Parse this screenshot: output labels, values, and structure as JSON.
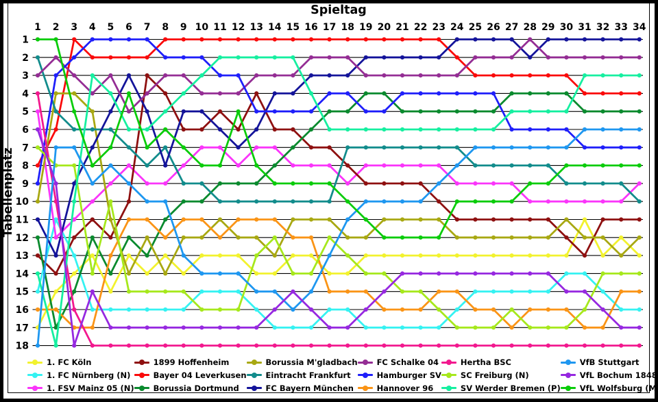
{
  "chart_data": {
    "type": "line",
    "title": "",
    "xlabel": "Spieltag",
    "ylabel": "Tabellenplatz",
    "x": [
      1,
      2,
      3,
      4,
      5,
      6,
      7,
      8,
      9,
      10,
      11,
      12,
      13,
      14,
      15,
      16,
      17,
      18,
      19,
      20,
      21,
      22,
      23,
      24,
      25,
      26,
      27,
      28,
      29,
      30,
      31,
      32,
      33,
      34
    ],
    "xlim": [
      1,
      34
    ],
    "ylim": [
      1,
      18
    ],
    "y_inverted": true,
    "grid": "horizontal",
    "legend_position": "bottom",
    "axis_color": "#000000",
    "series": [
      {
        "name": "1. FC Köln",
        "color": "#F2F22E",
        "values": [
          17,
          15,
          14,
          13,
          15,
          13,
          14,
          13,
          14,
          13,
          13,
          13,
          14,
          14,
          13,
          13,
          14,
          14,
          13,
          13,
          13,
          13,
          13,
          13,
          13,
          13,
          13,
          13,
          13,
          13,
          11,
          13,
          12,
          13
        ]
      },
      {
        "name": "1. FC Nürnberg (N)",
        "color": "#35F2F2",
        "values": [
          15,
          11,
          13,
          16,
          16,
          16,
          16,
          16,
          16,
          15,
          15,
          15,
          16,
          17,
          17,
          17,
          16,
          16,
          17,
          17,
          17,
          17,
          17,
          16,
          15,
          15,
          15,
          15,
          15,
          14,
          14,
          15,
          16,
          16
        ]
      },
      {
        "name": "1. FSV Mainz 05 (N)",
        "color": "#FA35FA",
        "values": [
          5,
          12,
          11,
          10,
          9,
          8,
          9,
          9,
          8,
          7,
          7,
          8,
          7,
          7,
          8,
          8,
          8,
          9,
          8,
          8,
          8,
          8,
          8,
          9,
          9,
          9,
          9,
          10,
          10,
          10,
          10,
          10,
          10,
          9
        ]
      },
      {
        "name": "1899 Hoffenheim",
        "color": "#8E1010",
        "values": [
          13,
          14,
          12,
          11,
          12,
          10,
          3,
          4,
          6,
          6,
          5,
          6,
          4,
          6,
          6,
          7,
          7,
          8,
          9,
          9,
          9,
          9,
          10,
          11,
          11,
          11,
          11,
          11,
          11,
          12,
          13,
          11,
          11,
          11
        ]
      },
      {
        "name": "Bayer 04 Leverkusen",
        "color": "#FA0A0A",
        "values": [
          8,
          6,
          1,
          2,
          2,
          2,
          2,
          1,
          1,
          1,
          1,
          1,
          1,
          1,
          1,
          1,
          1,
          1,
          1,
          1,
          1,
          1,
          1,
          2,
          3,
          3,
          3,
          3,
          3,
          3,
          4,
          4,
          4,
          4
        ]
      },
      {
        "name": "Borussia Dortmund",
        "color": "#0A8A2E",
        "values": [
          12,
          17,
          15,
          12,
          14,
          12,
          13,
          11,
          10,
          10,
          9,
          9,
          9,
          8,
          7,
          6,
          5,
          5,
          4,
          4,
          5,
          5,
          5,
          5,
          5,
          5,
          4,
          4,
          4,
          4,
          5,
          5,
          5,
          5
        ]
      },
      {
        "name": "Borussia M'gladbach",
        "color": "#A8A812",
        "values": [
          10,
          4,
          4,
          5,
          11,
          14,
          12,
          14,
          12,
          12,
          11,
          12,
          12,
          13,
          11,
          11,
          11,
          12,
          12,
          11,
          11,
          11,
          11,
          12,
          12,
          12,
          12,
          12,
          12,
          11,
          12,
          12,
          13,
          12
        ]
      },
      {
        "name": "Eintracht Frankfurt",
        "color": "#128C8C",
        "values": [
          2,
          5,
          6,
          6,
          6,
          7,
          8,
          7,
          9,
          9,
          10,
          10,
          10,
          10,
          10,
          10,
          10,
          7,
          7,
          7,
          7,
          7,
          7,
          7,
          8,
          8,
          8,
          8,
          8,
          9,
          9,
          9,
          9,
          10
        ]
      },
      {
        "name": "FC Bayern München",
        "color": "#14149A",
        "values": [
          11,
          13,
          9,
          7,
          5,
          3,
          5,
          8,
          5,
          5,
          6,
          7,
          6,
          4,
          4,
          3,
          3,
          3,
          2,
          2,
          2,
          2,
          2,
          1,
          1,
          1,
          1,
          2,
          1,
          1,
          1,
          1,
          1,
          1
        ]
      },
      {
        "name": "FC Schalke 04",
        "color": "#942D94",
        "values": [
          3,
          2,
          3,
          4,
          3,
          5,
          4,
          3,
          3,
          4,
          4,
          4,
          3,
          3,
          3,
          2,
          2,
          2,
          3,
          3,
          3,
          3,
          3,
          3,
          2,
          2,
          2,
          1,
          2,
          2,
          2,
          2,
          2,
          2
        ]
      },
      {
        "name": "Hamburger SV",
        "color": "#1F1FFA",
        "values": [
          9,
          3,
          2,
          1,
          1,
          1,
          1,
          2,
          2,
          2,
          3,
          3,
          5,
          5,
          5,
          5,
          4,
          4,
          5,
          5,
          4,
          4,
          4,
          4,
          4,
          4,
          6,
          6,
          6,
          6,
          7,
          7,
          7,
          7
        ]
      },
      {
        "name": "Hannover 96",
        "color": "#FA9416",
        "values": [
          16,
          16,
          17,
          17,
          13,
          11,
          11,
          12,
          11,
          11,
          12,
          11,
          11,
          11,
          12,
          12,
          15,
          15,
          15,
          16,
          16,
          16,
          15,
          15,
          16,
          16,
          17,
          16,
          16,
          16,
          17,
          17,
          15,
          15
        ]
      },
      {
        "name": "Hertha BSC",
        "color": "#F2188E",
        "values": [
          4,
          10,
          16,
          18,
          18,
          18,
          18,
          18,
          18,
          18,
          18,
          18,
          18,
          18,
          18,
          18,
          18,
          18,
          18,
          18,
          18,
          18,
          18,
          18,
          18,
          18,
          18,
          18,
          18,
          18,
          18,
          18,
          18,
          18
        ]
      },
      {
        "name": "SC Freiburg (N)",
        "color": "#A6E81C",
        "values": [
          7,
          8,
          8,
          14,
          10,
          15,
          15,
          15,
          15,
          16,
          16,
          16,
          13,
          12,
          14,
          14,
          12,
          13,
          14,
          14,
          15,
          15,
          16,
          17,
          17,
          17,
          16,
          17,
          17,
          17,
          16,
          14,
          14,
          14
        ]
      },
      {
        "name": "SV Werder Bremen (P)",
        "color": "#16EFA0",
        "values": [
          14,
          18,
          10,
          3,
          4,
          6,
          6,
          5,
          4,
          3,
          2,
          2,
          2,
          2,
          2,
          4,
          6,
          6,
          6,
          6,
          6,
          6,
          6,
          6,
          6,
          6,
          5,
          5,
          5,
          5,
          3,
          3,
          3,
          3
        ]
      },
      {
        "name": "VfB Stuttgart",
        "color": "#1E97F0",
        "values": [
          18,
          7,
          7,
          9,
          8,
          9,
          10,
          10,
          13,
          14,
          14,
          14,
          15,
          15,
          16,
          15,
          13,
          11,
          10,
          10,
          10,
          10,
          9,
          8,
          7,
          7,
          7,
          7,
          7,
          7,
          6,
          6,
          6,
          6
        ]
      },
      {
        "name": "VfL Bochum 1848",
        "color": "#9628E0",
        "values": [
          6,
          9,
          18,
          15,
          17,
          17,
          17,
          17,
          17,
          17,
          17,
          17,
          17,
          16,
          15,
          16,
          17,
          17,
          16,
          15,
          14,
          14,
          14,
          14,
          14,
          14,
          14,
          14,
          14,
          15,
          15,
          16,
          17,
          17
        ]
      },
      {
        "name": "VfL Wolfsburg (M)",
        "color": "#0ACC0A",
        "values": [
          1,
          1,
          5,
          8,
          7,
          4,
          7,
          6,
          7,
          8,
          8,
          5,
          8,
          9,
          9,
          9,
          9,
          10,
          11,
          12,
          12,
          12,
          12,
          10,
          10,
          10,
          10,
          9,
          9,
          8,
          8,
          8,
          8,
          8
        ]
      }
    ]
  }
}
